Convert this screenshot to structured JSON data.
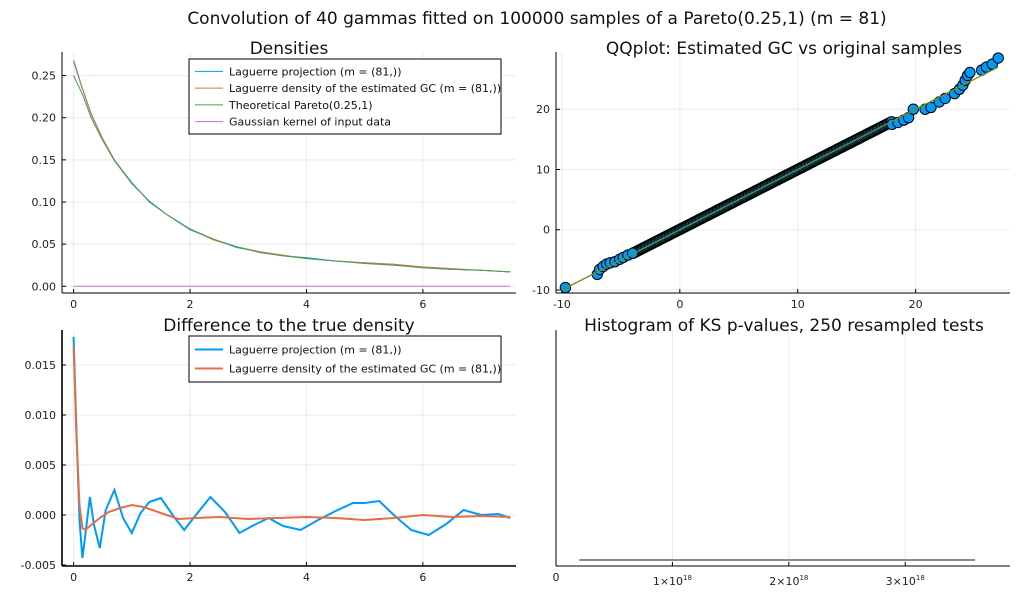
{
  "title": "Convolution of 40 gammas fitted on 100000 samples of a Pareto(0.25,1) (m = 81)",
  "chart_data": [
    {
      "id": "densities",
      "type": "line",
      "title": "Densities",
      "xlim": [
        -0.2,
        7.6
      ],
      "ylim": [
        -0.008,
        0.278
      ],
      "xticks": [
        0,
        2,
        4,
        6
      ],
      "xtick_labels": [
        "0",
        "2",
        "4",
        "6"
      ],
      "yticks": [
        0,
        0.05,
        0.1,
        0.15,
        0.2,
        0.25
      ],
      "ytick_labels": [
        "0.00",
        "0.05",
        "0.10",
        "0.15",
        "0.20",
        "0.25"
      ],
      "grid": true,
      "legend": "top-right",
      "series": [
        {
          "name": "Laguerre projection (m = (81,))",
          "color": "#009af9",
          "x": [
            0,
            0.15,
            0.3,
            0.5,
            0.7,
            1.0,
            1.3,
            1.6,
            2.0,
            2.4,
            2.8,
            3.2,
            3.6,
            4.0,
            4.5,
            5.0,
            5.5,
            6.0,
            6.5,
            7.0,
            7.5
          ],
          "y": [
            0.268,
            0.235,
            0.205,
            0.175,
            0.15,
            0.123,
            0.1,
            0.085,
            0.067,
            0.056,
            0.046,
            0.041,
            0.036,
            0.034,
            0.03,
            0.028,
            0.026,
            0.022,
            0.02,
            0.019,
            0.017
          ]
        },
        {
          "name": "Laguerre density of the estimated GC (m = (81,))",
          "color": "#e26f46",
          "x": [
            0,
            0.15,
            0.3,
            0.5,
            0.7,
            1.0,
            1.3,
            1.6,
            2.0,
            2.4,
            2.8,
            3.2,
            3.6,
            4.0,
            4.5,
            5.0,
            5.5,
            6.0,
            6.5,
            7.0,
            7.5
          ],
          "y": [
            0.266,
            0.234,
            0.204,
            0.175,
            0.15,
            0.122,
            0.101,
            0.085,
            0.068,
            0.055,
            0.047,
            0.041,
            0.037,
            0.033,
            0.03,
            0.028,
            0.026,
            0.023,
            0.021,
            0.019,
            0.017
          ]
        },
        {
          "name": "Theoretical Pareto(0.25,1)",
          "color": "#3da44d",
          "x": [
            0,
            0.15,
            0.3,
            0.5,
            0.7,
            1.0,
            1.3,
            1.6,
            2.0,
            2.4,
            2.8,
            3.2,
            3.6,
            4.0,
            4.5,
            5.0,
            5.5,
            6.0,
            6.5,
            7.0,
            7.5
          ],
          "y": [
            0.25,
            0.228,
            0.2,
            0.173,
            0.149,
            0.122,
            0.101,
            0.085,
            0.068,
            0.056,
            0.047,
            0.04,
            0.036,
            0.033,
            0.03,
            0.027,
            0.025,
            0.022,
            0.02,
            0.019,
            0.017
          ]
        },
        {
          "name": "Gaussian kernel of input data",
          "color": "#c271d2",
          "x": [
            0,
            7.5
          ],
          "y": [
            0.0,
            0.0
          ]
        }
      ]
    },
    {
      "id": "qqplot",
      "type": "scatter",
      "title": "QQplot: Estimated GC vs original samples",
      "xlim": [
        -10.5,
        28
      ],
      "ylim": [
        -10.5,
        29.5
      ],
      "xticks": [
        -10,
        0,
        10,
        20
      ],
      "xtick_labels": [
        "-10",
        "0",
        "10",
        "20"
      ],
      "yticks": [
        -10,
        0,
        10,
        20
      ],
      "ytick_labels": [
        "-10",
        "0",
        "10",
        "20"
      ],
      "grid": true,
      "legend": "none",
      "line": {
        "color": "#6b8e23",
        "x": [
          -10,
          27
        ],
        "y": [
          -10,
          27
        ]
      },
      "points_color": "#009af9",
      "points": {
        "x": [
          -9.7,
          -7.0,
          -6.8,
          -6.5,
          -6.2,
          -5.9,
          -5.5,
          -5.1,
          -4.8,
          -4.4,
          -4.0,
          18.0,
          18.5,
          19.0,
          19.4,
          19.8,
          20.8,
          21.3,
          22.0,
          22.5,
          23.3,
          23.7,
          24.0,
          24.2,
          24.4,
          24.6,
          25.6,
          26.0,
          26.5,
          27.0
        ],
        "y": [
          -9.6,
          -7.4,
          -6.6,
          -6.1,
          -5.7,
          -5.5,
          -5.3,
          -4.9,
          -4.6,
          -4.2,
          -3.9,
          17.5,
          17.8,
          18.2,
          18.6,
          20.0,
          20.0,
          20.3,
          21.2,
          21.8,
          22.6,
          23.3,
          24.0,
          24.8,
          25.6,
          26.1,
          26.5,
          27.0,
          27.5,
          28.5
        ]
      },
      "dense_range": [
        -4.0,
        18.0
      ]
    },
    {
      "id": "difference",
      "type": "line",
      "title": "Difference to the true density",
      "xlim": [
        -0.2,
        7.6
      ],
      "ylim": [
        -0.0051,
        0.0185
      ],
      "xticks": [
        0,
        2,
        4,
        6
      ],
      "xtick_labels": [
        "0",
        "2",
        "4",
        "6"
      ],
      "yticks": [
        -0.005,
        0,
        0.005,
        0.01,
        0.015
      ],
      "ytick_labels": [
        "-0.005",
        "0.000",
        "0.005",
        "0.010",
        "0.015"
      ],
      "grid": true,
      "legend": "top-right",
      "series": [
        {
          "name": "Laguerre projection (m = (81,))",
          "color": "#009af9",
          "x": [
            0,
            0.05,
            0.1,
            0.15,
            0.2,
            0.28,
            0.35,
            0.45,
            0.55,
            0.7,
            0.85,
            1.0,
            1.15,
            1.3,
            1.5,
            1.7,
            1.9,
            2.1,
            2.35,
            2.6,
            2.85,
            3.1,
            3.35,
            3.6,
            3.9,
            4.2,
            4.5,
            4.8,
            5.0,
            5.25,
            5.5,
            5.8,
            6.1,
            6.4,
            6.7,
            7.0,
            7.3,
            7.5
          ],
          "y": [
            0.0178,
            0.008,
            -0.0005,
            -0.0043,
            -0.002,
            0.0018,
            -0.001,
            -0.0033,
            0.0005,
            0.0025,
            -0.0003,
            -0.0018,
            0.0002,
            0.0013,
            0.0017,
            0.0,
            -0.0015,
            0.0,
            0.0018,
            0.0003,
            -0.0018,
            -0.001,
            -0.0003,
            -0.0011,
            -0.0015,
            -0.0005,
            0.0004,
            0.0012,
            0.0012,
            0.0014,
            0.0,
            -0.0015,
            -0.002,
            -0.0009,
            0.0005,
            0.0,
            0.0001,
            -0.0003
          ]
        },
        {
          "name": "Laguerre density of the estimated GC (m = (81,))",
          "color": "#e26f46",
          "x": [
            0,
            0.05,
            0.1,
            0.15,
            0.2,
            0.3,
            0.45,
            0.6,
            0.8,
            1.0,
            1.2,
            1.5,
            1.8,
            2.1,
            2.5,
            3.0,
            3.5,
            4.0,
            4.5,
            5.0,
            5.5,
            6.0,
            6.5,
            7.0,
            7.5
          ],
          "y": [
            0.0168,
            0.0075,
            0.001,
            -0.0013,
            -0.0015,
            -0.001,
            -0.0003,
            0.0003,
            0.0007,
            0.001,
            0.0008,
            0.0002,
            -0.0004,
            -0.0003,
            -0.0002,
            -0.0004,
            -0.0003,
            -0.0002,
            -0.0003,
            -0.0005,
            -0.0003,
            0.0,
            -0.0002,
            -0.0001,
            -0.0002
          ]
        }
      ]
    },
    {
      "id": "histogram",
      "type": "bar",
      "title": "Histogram of KS p-values, 250 resampled tests",
      "xlim": [
        0,
        3.9
      ],
      "ylim": [
        0,
        1
      ],
      "x_unit_exponent": "18",
      "xticks": [
        0,
        1,
        2,
        3
      ],
      "xtick_labels": [
        "0",
        "1×10",
        "2×10",
        "3×10"
      ],
      "grid": true,
      "legend": "none",
      "bar_color": "#444444",
      "bars": [
        {
          "x0": 0.2,
          "x1": 3.6,
          "value": 0.0
        }
      ]
    }
  ]
}
